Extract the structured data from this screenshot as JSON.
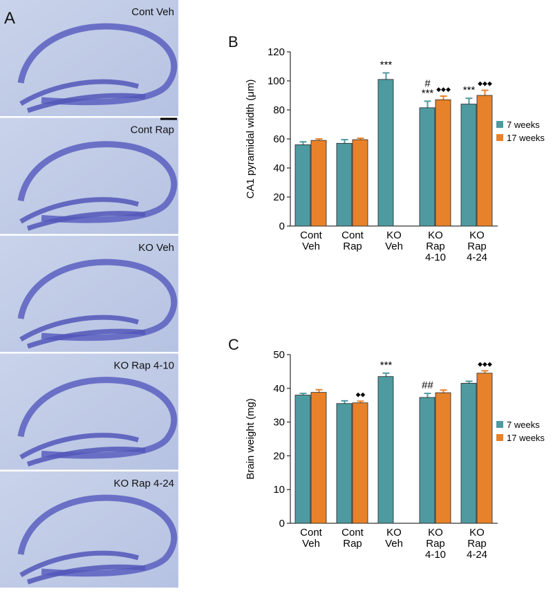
{
  "panel_a": {
    "label": "A",
    "images": [
      "Cont Veh",
      "Cont Rap",
      "KO Veh",
      "KO Rap 4-10",
      "KO Rap 4-24"
    ]
  },
  "chart_data": [
    {
      "type": "bar",
      "panel": "B",
      "y_label": "CA1 pyramidal width (μm)",
      "categories": [
        [
          "Cont",
          "Veh"
        ],
        [
          "Cont",
          "Rap"
        ],
        [
          "KO",
          "Veh"
        ],
        [
          "KO",
          "Rap",
          "4-10"
        ],
        [
          "KO",
          "Rap",
          "4-24"
        ]
      ],
      "series": [
        {
          "name": "7 weeks",
          "color": "#4e9aa0",
          "values": [
            56,
            57,
            101,
            81.5,
            84
          ],
          "errors": [
            2,
            2.5,
            4.5,
            4.5,
            4
          ],
          "markers": [
            null,
            null,
            [
              "***"
            ],
            [
              "#",
              "***"
            ],
            [
              "***"
            ]
          ]
        },
        {
          "name": "17 weeks",
          "color": "#e8822a",
          "values": [
            59,
            59.5,
            null,
            87,
            90
          ],
          "errors": [
            1,
            1,
            null,
            2.5,
            3.5
          ],
          "markers": [
            null,
            null,
            null,
            [
              "◆◆◆"
            ],
            [
              "◆◆◆"
            ]
          ]
        }
      ],
      "ylim": [
        0,
        120
      ],
      "yticks": [
        0,
        20,
        40,
        60,
        80,
        100,
        120
      ],
      "legend": "right"
    },
    {
      "type": "bar",
      "panel": "C",
      "y_label": "Brain weight (mg)",
      "categories": [
        [
          "Cont",
          "Veh"
        ],
        [
          "Cont",
          "Rap"
        ],
        [
          "KO",
          "Veh"
        ],
        [
          "KO",
          "Rap",
          "4-10"
        ],
        [
          "KO",
          "Rap",
          "4-24"
        ]
      ],
      "series": [
        {
          "name": "7 weeks",
          "color": "#4e9aa0",
          "values": [
            38,
            35.5,
            43.5,
            37.3,
            41.5
          ],
          "errors": [
            0.5,
            0.8,
            1,
            1.2,
            0.6
          ],
          "markers": [
            null,
            null,
            [
              "***"
            ],
            [
              "##"
            ],
            null
          ]
        },
        {
          "name": "17 weeks",
          "color": "#e8822a",
          "values": [
            38.8,
            35.7,
            null,
            38.7,
            44.5
          ],
          "errors": [
            0.8,
            0.5,
            null,
            0.8,
            0.7
          ],
          "markers": [
            null,
            [
              "◆◆"
            ],
            null,
            null,
            [
              "◆◆◆"
            ]
          ]
        }
      ],
      "ylim": [
        0,
        50
      ],
      "yticks": [
        0,
        10,
        20,
        30,
        40,
        50
      ],
      "legend": "right"
    }
  ]
}
